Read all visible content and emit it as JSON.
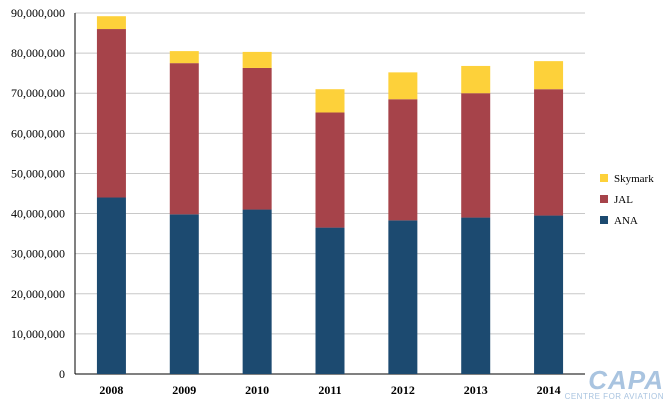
{
  "chart_data": {
    "type": "bar",
    "stacked": true,
    "categories": [
      "2008",
      "2009",
      "2010",
      "2011",
      "2012",
      "2013",
      "2014"
    ],
    "series": [
      {
        "name": "ANA",
        "color": "#1c4a70",
        "values": [
          44000000,
          39800000,
          41000000,
          36500000,
          38300000,
          39000000,
          39500000
        ]
      },
      {
        "name": "JAL",
        "color": "#a6434a",
        "values": [
          42000000,
          37700000,
          35300000,
          28700000,
          30200000,
          31000000,
          31500000
        ]
      },
      {
        "name": "Skymark",
        "color": "#fdd13a",
        "values": [
          3200000,
          3000000,
          4000000,
          5800000,
          6700000,
          6800000,
          7000000
        ]
      }
    ],
    "yticks": [
      "0",
      "10,000,000",
      "20,000,000",
      "30,000,000",
      "40,000,000",
      "50,000,000",
      "60,000,000",
      "70,000,000",
      "80,000,000",
      "90,000,000"
    ],
    "ylim": [
      0,
      90000000
    ],
    "grid": true,
    "legend_position": "right",
    "legend_order": [
      "Skymark",
      "JAL",
      "ANA"
    ]
  },
  "watermark": {
    "main": "CAPA",
    "sub": "CENTRE FOR AVIATION"
  }
}
